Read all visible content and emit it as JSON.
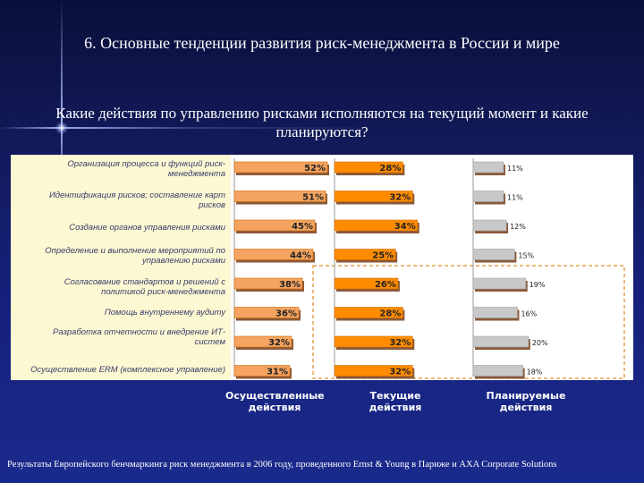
{
  "slide": {
    "title": "6. Основные тенденции развития риск-менеджмента в России и мире",
    "question": "Какие действия по управлению рисками исполняются на текущий момент и какие планируются?",
    "source": "Результаты Европейского бенчмаркинга риск менеджмента в 2006 году, проведенного Ernst & Young в Париже и AXA Corporate Solutions"
  },
  "chart_data": {
    "type": "bar",
    "orientation": "horizontal",
    "categories": [
      "Организация процесса и функций риск-менеджмента",
      "Идентификация рисков; составление карт рисков",
      "Создание органов управления рисками",
      "Определение и выполнение мероприятий по управлению рисками",
      "Согласование стандартов и решений с политикой риск-менеджмента",
      "Помощь внутреннему аудиту",
      "Разработка отчетности и внедрение ИТ-систем",
      "Осуществление ERM (комплексное управление)"
    ],
    "series": [
      {
        "name": "Осуществленные действия",
        "values": [
          52,
          51,
          45,
          44,
          38,
          36,
          32,
          31
        ],
        "labels": [
          "52%",
          "51%",
          "45%",
          "44%",
          "38%",
          "36%",
          "32%",
          "31%"
        ],
        "color": "#f4a460"
      },
      {
        "name": "Текущие действия",
        "values": [
          28,
          32,
          34,
          25,
          26,
          28,
          32,
          32
        ],
        "labels": [
          "28%",
          "32%",
          "34%",
          "25%",
          "26%",
          "28%",
          "32%",
          "32%"
        ],
        "color": "#ff8c00"
      },
      {
        "name": "Планируемые действия",
        "values": [
          11,
          11,
          12,
          15,
          19,
          16,
          20,
          18
        ],
        "labels": [
          "11%",
          "11%",
          "12%",
          "15%",
          "19%",
          "16%",
          "20%",
          "18%"
        ],
        "color": "#c8c8c8"
      }
    ],
    "column_labels": [
      "Осуществленные действия",
      "Текущие действия",
      "Планируемые действия"
    ],
    "xlim": [
      0,
      55
    ]
  }
}
